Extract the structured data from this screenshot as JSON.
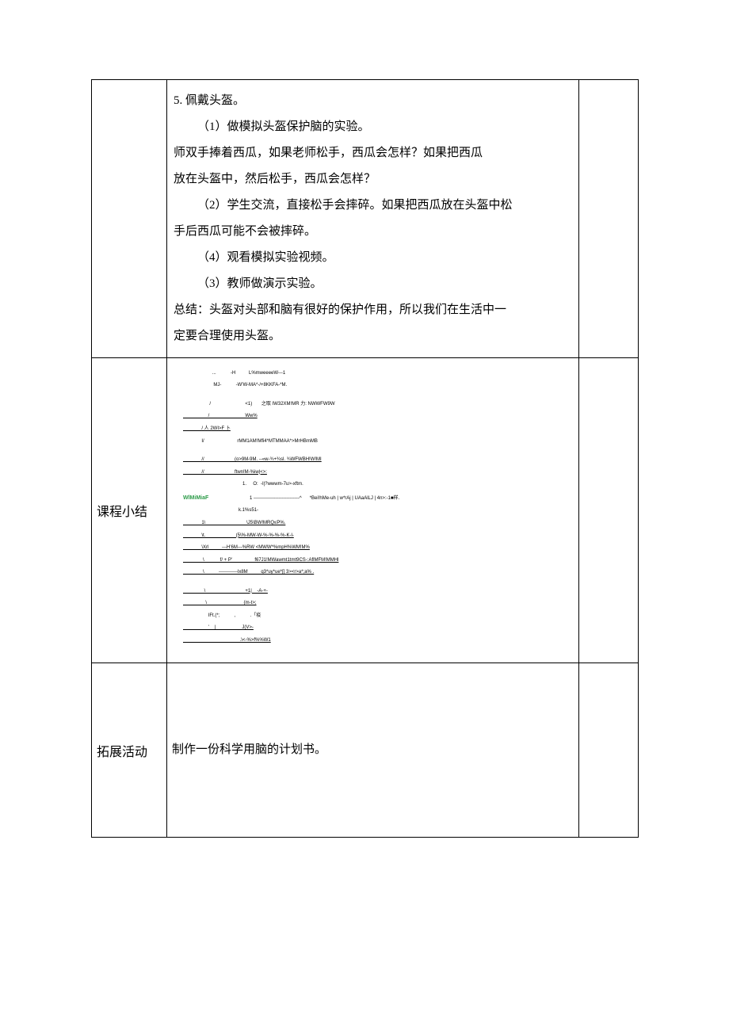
{
  "row1": {
    "label": "",
    "lines": [
      {
        "text": "5. 佩戴头盔。",
        "indent": false
      },
      {
        "text": "（1）做模拟头盔保护脑的实验。",
        "indent": true
      },
      {
        "text": "师双手捧着西瓜，如果老师松手，西瓜会怎样？如果把西瓜",
        "indent": false
      },
      {
        "text": "放在头盔中，然后松手，西瓜会怎样？",
        "indent": false
      },
      {
        "text": "（2）学生交流，直接松手会摔碎。如果把西瓜放在头盔中松",
        "indent": true
      },
      {
        "text": "手后西瓜可能不会被摔碎。",
        "indent": false
      },
      {
        "text": "（4）观看模拟实验视频。",
        "indent": true
      },
      {
        "text": "（3）教师做演示实验。",
        "indent": true
      },
      {
        "text": "总结：头盔对头部和脑有很好的保护作用，所以我们在生活中一",
        "indent": false
      },
      {
        "text": "定要合理使用头盔。",
        "indent": false
      }
    ]
  },
  "row2": {
    "label": "课程小结",
    "diagram": {
      "green_label": "WlMiMiaF",
      "lines": [
        "                      ...           -H          L%mweeeeW---1",
        "                       MJ-           -W'W-MA*-/+8KKFA-*M.",
        "",
        "                    /                          <1)       之取 IW32XM!MR 力: NWWFW9W",
        "                   /                           Ww%",
        "              / 人 2WI>F 卜",
        "              I/                         rMM1AM!Mfi4*MTMMAA*>MrHBmMB",
        "",
        "              //                       (o>9M-9M. --«w-¾+¾sl. ¾WFWBH!W!MI",
        "              //                       ftwn!M-%iw|<>:",
        "                                             1.     O:  -I|?wwwm-7u>-xftm.",
        "                               1 -----------------------------^      *Bei!hMe-uh | w*rAj | UAaAlLJ | 4n>:-1■样.",
        "                                          k.1%s51-",
        "              1\\                               \\J5\\BW!MRQ≤P%.",
        "              \\t.                       (5\\%-MW-W-%-%-%-%-K-l-",
        "              \\Xrl          ---H'6M---%RW <MWW*%mpH%WM!M%",
        "               \\            f/ + P'                 f67J1!MWawmt1tmt9CS-:AflMFM!MMHl",
        "               \\           ------------lx8M          q3*uy*ue*[] 3><r>a*;a% .",
        "",
        "                \\                              +1|    -A-+-",
        "                 \\                            {m-t>;",
        "                   IFt.(*;           ,           .「疫",
        "                   '    |                    J(V>-",
        "                                           .\\<-%>f%%W1"
      ]
    }
  },
  "row3": {
    "label": "拓展活动",
    "content": "制作一份科学用脑的计划书。"
  },
  "colors": {
    "border": "#000000",
    "background": "#ffffff",
    "text": "#000000",
    "green": "#2e9c4a"
  }
}
